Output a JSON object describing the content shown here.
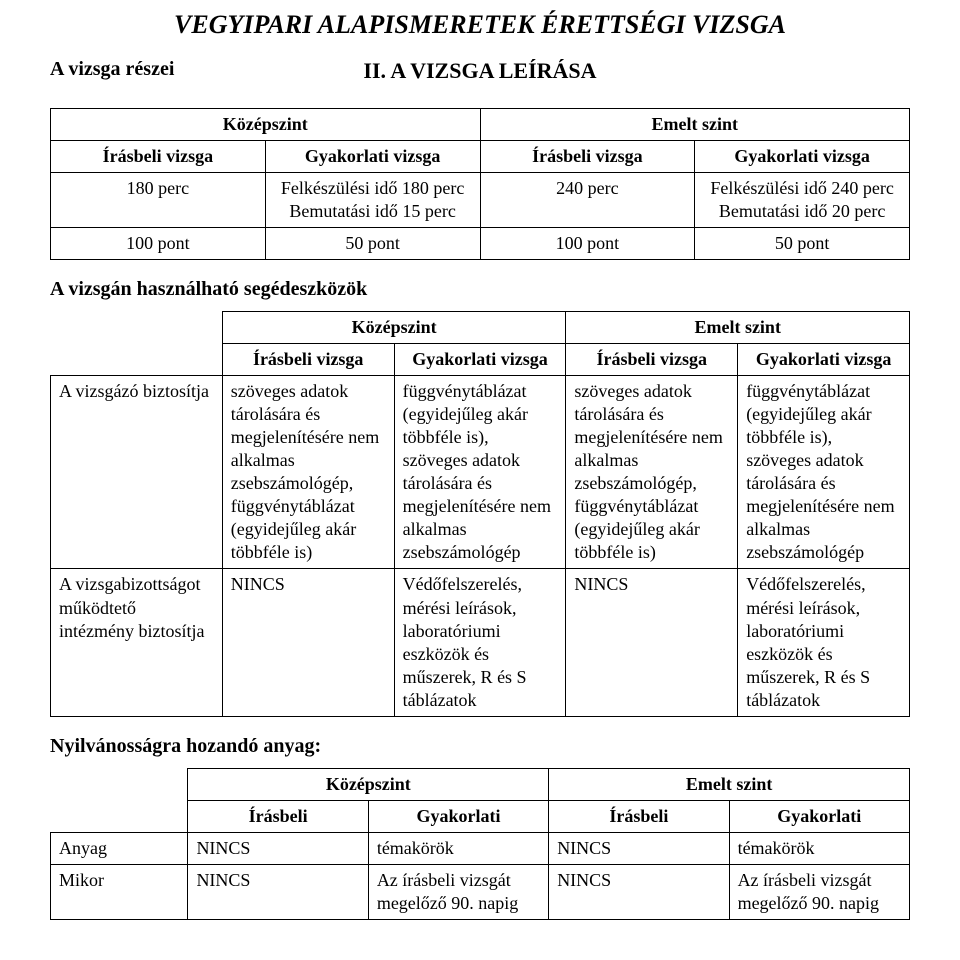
{
  "title": "VEGYIPARI ALAPISMERETEK ÉRETTSÉGI VIZSGA",
  "section_left": "A vizsga részei",
  "section_center": "II. A VIZSGA LEÍRÁSA",
  "t1": {
    "head": {
      "kozep": "Középszint",
      "emelt": "Emelt szint",
      "ir": "Írásbeli vizsga",
      "gy": "Gyakorlati vizsga"
    },
    "row1": {
      "c1": "180 perc",
      "c2": "Felkészülési idő 180 perc\nBemutatási idő 15 perc",
      "c3": "240 perc",
      "c4": "Felkészülési idő 240 perc\nBemutatási idő 20 perc"
    },
    "row2": {
      "c1": "100 pont",
      "c2": "50 pont",
      "c3": "100 pont",
      "c4": "50 pont"
    }
  },
  "sub_tools": "A vizsgán használható segédeszközök",
  "t2": {
    "head": {
      "kozep": "Középszint",
      "emelt": "Emelt szint",
      "ir": "Írásbeli vizsga",
      "gy": "Gyakorlati vizsga"
    },
    "row1": {
      "label": "A vizsgázó biztosítja",
      "c1": "szöveges adatok tárolására és megjelenítésére nem alkalmas zsebszámológép, függvénytáblázat (egyidejűleg akár többféle is)",
      "c2": "függvénytáblázat (egyidejűleg akár többféle is), szöveges adatok tárolására és megjelenítésére nem alkalmas zsebszámológép",
      "c3": "szöveges adatok tárolására és megjelenítésére nem alkalmas zsebszámológép, függvénytáblázat (egyidejűleg akár többféle is)",
      "c4": "függvénytáblázat (egyidejűleg akár többféle is), szöveges adatok tárolására és megjelenítésére nem alkalmas zsebszámológép"
    },
    "row2": {
      "label": "A vizsgabizottságot működtető intézmény biztosítja",
      "c1": "NINCS",
      "c2": "Védőfelszerelés, mérési leírások, laboratóriumi eszközök és műszerek, R és S táblázatok",
      "c3": "NINCS",
      "c4": "Védőfelszerelés, mérési leírások, laboratóriumi eszközök és műszerek, R és S táblázatok"
    }
  },
  "sub_public": "Nyilvánosságra hozandó anyag:",
  "t3": {
    "head": {
      "kozep": "Középszint",
      "emelt": "Emelt szint",
      "ir": "Írásbeli",
      "gy": "Gyakorlati"
    },
    "row1": {
      "label": "Anyag",
      "c1": "NINCS",
      "c2": "témakörök",
      "c3": "NINCS",
      "c4": "témakörök"
    },
    "row2": {
      "label": "Mikor",
      "c1": "NINCS",
      "c2": "Az írásbeli vizsgát megelőző 90. napig",
      "c3": "NINCS",
      "c4": "Az írásbeli vizsgát megelőző 90. napig"
    }
  }
}
